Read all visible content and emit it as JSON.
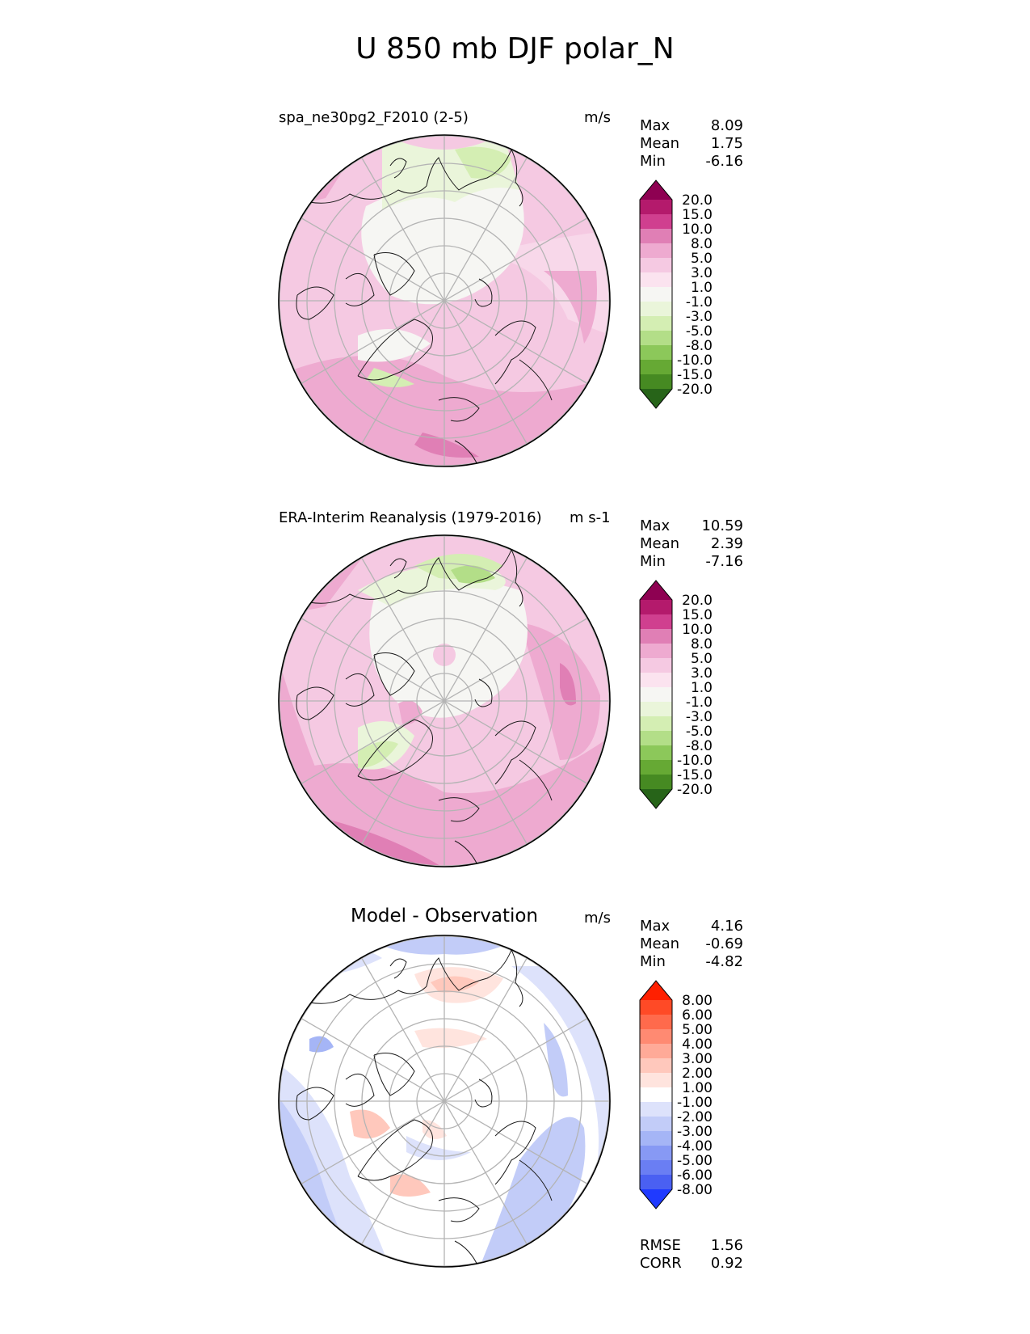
{
  "title": "U 850 mb DJF polar_N",
  "panels": [
    {
      "id": "test",
      "title": "spa_ne30pg2_F2010 (2-5)",
      "units": "m/s",
      "stats": {
        "max_label": "Max",
        "max": "8.09",
        "mean_label": "Mean",
        "mean": "1.75",
        "min_label": "Min",
        "min": "-6.16"
      },
      "colorbar": {
        "labels": [
          "20.0",
          "15.0",
          "10.0",
          "8.0",
          "5.0",
          "3.0",
          "1.0",
          "-1.0",
          "-3.0",
          "-5.0",
          "-8.0",
          "-10.0",
          "-15.0",
          "-20.0"
        ],
        "colors": [
          "#8e0152",
          "#b41a6c",
          "#d03f8f",
          "#e07fb5",
          "#eeaad0",
          "#f5c9e2",
          "#fbe3ef",
          "#f6f6f3",
          "#eaf5da",
          "#d4eeb3",
          "#b3de88",
          "#8cc85a",
          "#66a934",
          "#468a22",
          "#276419"
        ]
      }
    },
    {
      "id": "reference",
      "title": "ERA-Interim Reanalysis (1979-2016)",
      "units": "m s-1",
      "stats": {
        "max_label": "Max",
        "max": "10.59",
        "mean_label": "Mean",
        "mean": "2.39",
        "min_label": "Min",
        "min": "-7.16"
      },
      "colorbar": {
        "labels": [
          "20.0",
          "15.0",
          "10.0",
          "8.0",
          "5.0",
          "3.0",
          "1.0",
          "-1.0",
          "-3.0",
          "-5.0",
          "-8.0",
          "-10.0",
          "-15.0",
          "-20.0"
        ],
        "colors": [
          "#8e0152",
          "#b41a6c",
          "#d03f8f",
          "#e07fb5",
          "#eeaad0",
          "#f5c9e2",
          "#fbe3ef",
          "#f6f6f3",
          "#eaf5da",
          "#d4eeb3",
          "#b3de88",
          "#8cc85a",
          "#66a934",
          "#468a22",
          "#276419"
        ]
      }
    },
    {
      "id": "difference",
      "title": "Model - Observation",
      "units": "m/s",
      "stats": {
        "max_label": "Max",
        "max": "4.16",
        "mean_label": "Mean",
        "mean": "-0.69",
        "min_label": "Min",
        "min": "-4.82"
      },
      "metrics": {
        "rmse_label": "RMSE",
        "rmse": "1.56",
        "corr_label": "CORR",
        "corr": "0.92"
      },
      "colorbar": {
        "labels": [
          "8.00",
          "6.00",
          "5.00",
          "4.00",
          "3.00",
          "2.00",
          "1.00",
          "-1.00",
          "-2.00",
          "-3.00",
          "-4.00",
          "-5.00",
          "-6.00",
          "-8.00"
        ],
        "colors": [
          "#ff2000",
          "#ff4a26",
          "#ff6a4c",
          "#ff8a72",
          "#ffaa98",
          "#ffc8bc",
          "#ffe4de",
          "#ffffff",
          "#dde2fb",
          "#c2ccf8",
          "#a5b5f6",
          "#8799f4",
          "#6a7ef3",
          "#4a60f2",
          "#1f3aff"
        ]
      }
    }
  ],
  "chart_data": [
    {
      "type": "heatmap",
      "projection": "north polar stereographic",
      "title": "spa_ne30pg2_F2010 (2-5)",
      "units": "m/s",
      "max": 8.09,
      "mean": 1.75,
      "min": -6.16,
      "levels": [
        -20,
        -15,
        -10,
        -8,
        -5,
        -3,
        -1,
        1,
        3,
        5,
        8,
        10,
        15,
        20
      ]
    },
    {
      "type": "heatmap",
      "projection": "north polar stereographic",
      "title": "ERA-Interim Reanalysis (1979-2016)",
      "units": "m s-1",
      "max": 10.59,
      "mean": 2.39,
      "min": -7.16,
      "levels": [
        -20,
        -15,
        -10,
        -8,
        -5,
        -3,
        -1,
        1,
        3,
        5,
        8,
        10,
        15,
        20
      ]
    },
    {
      "type": "heatmap",
      "projection": "north polar stereographic",
      "title": "Model - Observation",
      "units": "m/s",
      "max": 4.16,
      "mean": -0.69,
      "min": -4.82,
      "rmse": 1.56,
      "corr": 0.92,
      "levels": [
        -8,
        -6,
        -5,
        -4,
        -3,
        -2,
        -1,
        1,
        2,
        3,
        4,
        5,
        6,
        8
      ]
    }
  ]
}
